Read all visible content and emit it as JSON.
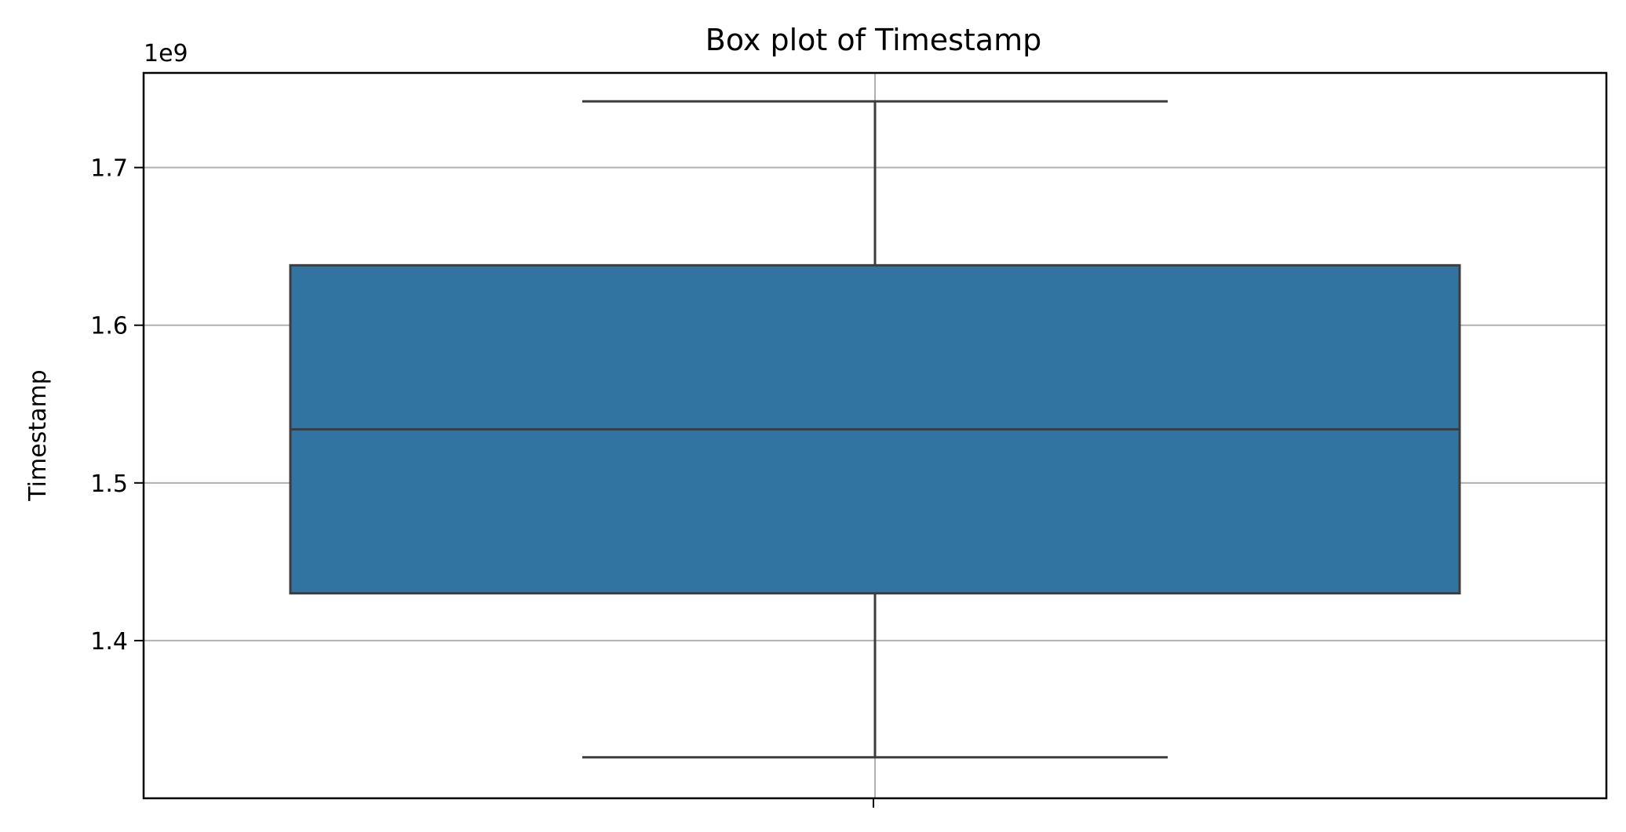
{
  "chart_data": {
    "type": "box",
    "title": "Box plot of Timestamp",
    "xlabel": "",
    "ylabel": "Timestamp",
    "offset_label": "1e9",
    "y_scale_factor": 1000000000,
    "ylim": [
      1.3,
      1.76
    ],
    "yticks": [
      1.4,
      1.5,
      1.6,
      1.7
    ],
    "ytick_labels": [
      "1.4",
      "1.5",
      "1.6",
      "1.7"
    ],
    "grid": true,
    "legend": "none",
    "box": {
      "whisker_low": 1.326,
      "q1": 1.43,
      "median": 1.534,
      "q3": 1.638,
      "whisker_high": 1.742
    },
    "colors": {
      "box_fill": "#3274a1",
      "line": "#3d3d3d",
      "grid": "#b0b0b0",
      "axes": "#000000"
    }
  }
}
